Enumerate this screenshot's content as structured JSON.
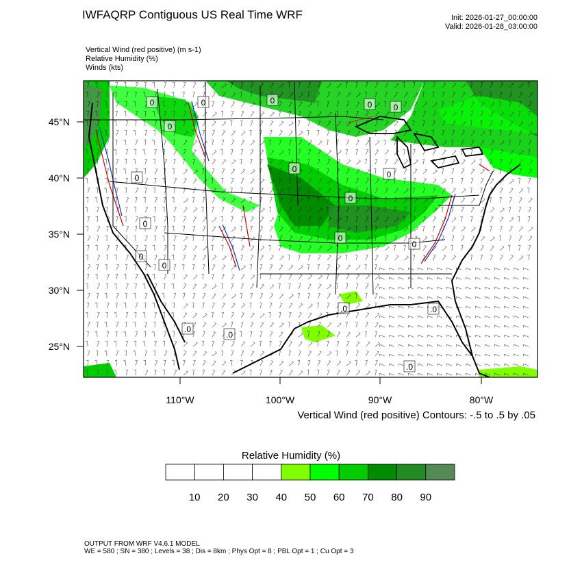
{
  "header": {
    "title": "IWFAQRP Contiguous US Real Time WRF",
    "init": "Init: 2026-01-27_00:00:00",
    "valid": "Valid: 2026-01-28_03:00:00"
  },
  "fields": [
    "Vertical Wind (red positive)   (m s-1)",
    "Relative Humidity   (%)",
    "Winds   (kts)"
  ],
  "map": {
    "lat_labels": [
      "45°N",
      "40°N",
      "35°N",
      "30°N",
      "25°N"
    ],
    "lon_labels": [
      "110°W",
      "100°W",
      "90°W",
      "80°W"
    ],
    "contour_labels": [
      "0",
      "0",
      "0",
      "0",
      "0",
      "0",
      "0",
      "0",
      "0",
      "0",
      "0",
      "0",
      "0",
      "0",
      "0",
      ".0",
      ".0",
      ".0",
      ".0",
      ".0"
    ]
  },
  "contour_note": "Vertical Wind (red positive) Contours: -.5 to .5 by .05",
  "colorbar": {
    "title": "Relative Humidity  (%)",
    "labels": [
      "10",
      "20",
      "30",
      "40",
      "50",
      "60",
      "70",
      "80",
      "90"
    ],
    "colors": [
      "#ffffff",
      "#ffffff",
      "#ffffff",
      "#ffffff",
      "#7fff00",
      "#00ff00",
      "#00cd00",
      "#008b00",
      "#228b22",
      "#548b54"
    ]
  },
  "footer": {
    "line1": "OUTPUT FROM WRF V4.6.1 MODEL",
    "line2": "WE = 580 ; SN = 380 ; Levels = 38 ; Dis = 8km ; Phys Opt = 8 ; PBL Opt = 1 ; Cu Opt = 3"
  }
}
